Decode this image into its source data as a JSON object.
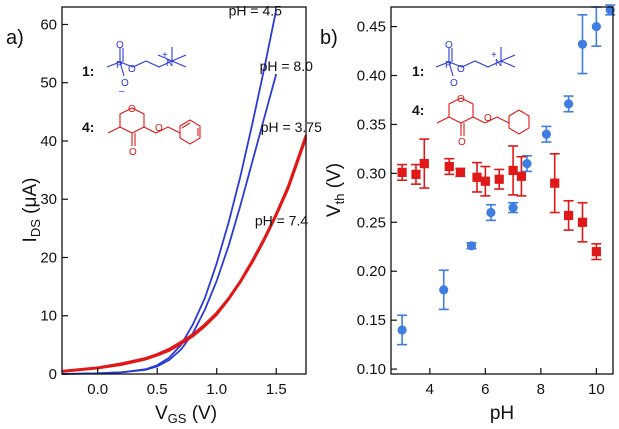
{
  "chart_data": [
    {
      "panel_label": "a)",
      "type": "line",
      "xlabel": "V",
      "xlabel_sub": "GS",
      "xlabel_unit": " (V)",
      "ylabel": "I",
      "ylabel_sub": "DS",
      "ylabel_unit": " (μA)",
      "xlim": [
        -0.3,
        1.75
      ],
      "ylim": [
        0,
        63
      ],
      "xticks": [
        0.0,
        0.5,
        1.0,
        1.5
      ],
      "xtick_labels": [
        "0.0",
        "0.5",
        "1.0",
        "1.5"
      ],
      "yticks": [
        0,
        10,
        20,
        30,
        40,
        50,
        60
      ],
      "ytick_labels": [
        "0",
        "10",
        "20",
        "30",
        "40",
        "50",
        "60"
      ],
      "series": [
        {
          "name": "pH = 4.5",
          "color": "#2a3bd8",
          "x": [
            -0.3,
            0.0,
            0.2,
            0.4,
            0.5,
            0.6,
            0.7,
            0.8,
            0.9,
            1.0,
            1.1,
            1.2,
            1.3,
            1.4,
            1.5
          ],
          "y": [
            0,
            0.1,
            0.3,
            0.8,
            1.5,
            2.8,
            5.0,
            8.5,
            13.0,
            19.0,
            26.0,
            34.0,
            43.0,
            52.5,
            62.5
          ]
        },
        {
          "name": "pH = 8.0",
          "color": "#2a3bd8",
          "x": [
            -0.3,
            0.0,
            0.2,
            0.4,
            0.5,
            0.6,
            0.7,
            0.8,
            0.9,
            1.0,
            1.1,
            1.2,
            1.3,
            1.4,
            1.5
          ],
          "y": [
            0,
            0.1,
            0.3,
            0.7,
            1.3,
            2.4,
            4.2,
            7.0,
            11.0,
            16.0,
            22.0,
            29.0,
            36.5,
            44.0,
            51.5
          ]
        },
        {
          "name": "pH = 3.75",
          "color": "#e01818",
          "x": [
            -0.3,
            0.0,
            0.2,
            0.4,
            0.5,
            0.6,
            0.7,
            0.8,
            0.9,
            1.0,
            1.1,
            1.2,
            1.3,
            1.4,
            1.5,
            1.6,
            1.75
          ],
          "y": [
            0.4,
            1.0,
            1.6,
            2.5,
            3.2,
            4.0,
            5.2,
            6.5,
            8.2,
            10.2,
            12.8,
            15.8,
            19.2,
            23.0,
            27.2,
            31.8,
            40.5
          ]
        },
        {
          "name": "pH = 7.4",
          "color": "#e01818",
          "x": [
            -0.3,
            0.0,
            0.2,
            0.4,
            0.5,
            0.6,
            0.7,
            0.8,
            0.9,
            1.0,
            1.1,
            1.2,
            1.3,
            1.4,
            1.5,
            1.6,
            1.75
          ],
          "y": [
            0.5,
            1.1,
            1.8,
            2.7,
            3.4,
            4.3,
            5.5,
            6.8,
            8.5,
            10.5,
            13.0,
            16.0,
            19.5,
            23.3,
            27.5,
            32.2,
            41.0
          ]
        }
      ],
      "annotations": [
        {
          "text": "pH = 4.5",
          "x": 1.1,
          "y": 61.5
        },
        {
          "text": "pH = 8.0",
          "x": 1.36,
          "y": 52.0
        },
        {
          "text": "pH = 3.75",
          "x": 1.37,
          "y": 41.5
        },
        {
          "text": "pH = 7.4",
          "x": 1.32,
          "y": 25.5
        }
      ],
      "compound_labels": [
        {
          "text": "1:",
          "color": "#2a3bd8"
        },
        {
          "text": "4:",
          "color": "#e01818"
        }
      ]
    },
    {
      "panel_label": "b)",
      "type": "scatter",
      "xlabel": "pH",
      "ylabel": "V",
      "ylabel_sub": "th",
      "ylabel_unit": " (V)",
      "xlim": [
        2.6,
        10.6
      ],
      "ylim": [
        0.095,
        0.47
      ],
      "xticks": [
        4,
        6,
        8,
        10
      ],
      "xtick_labels": [
        "4",
        "6",
        "8",
        "10"
      ],
      "yticks": [
        0.1,
        0.15,
        0.2,
        0.25,
        0.3,
        0.35,
        0.4,
        0.45
      ],
      "ytick_labels": [
        "0.10",
        "0.15",
        "0.20",
        "0.25",
        "0.30",
        "0.35",
        "0.40",
        "0.45"
      ],
      "series": [
        {
          "name": "1",
          "color": "#3f7de0",
          "marker": "circle",
          "x": [
            3.0,
            4.5,
            5.5,
            6.2,
            7.0,
            7.5,
            8.2,
            9.0,
            9.5,
            10.0,
            10.5
          ],
          "y": [
            0.14,
            0.181,
            0.226,
            0.26,
            0.265,
            0.31,
            0.34,
            0.371,
            0.432,
            0.45,
            0.467
          ],
          "err": [
            0.015,
            0.02,
            0.003,
            0.008,
            0.005,
            0.008,
            0.008,
            0.008,
            0.03,
            0.02,
            0.005
          ]
        },
        {
          "name": "4",
          "color": "#e01818",
          "marker": "square",
          "x": [
            3.0,
            3.5,
            3.8,
            4.7,
            5.1,
            5.7,
            6.0,
            6.5,
            7.0,
            7.3,
            8.5,
            9.0,
            9.5,
            10.0
          ],
          "y": [
            0.301,
            0.299,
            0.31,
            0.307,
            0.301,
            0.296,
            0.292,
            0.294,
            0.303,
            0.297,
            0.29,
            0.257,
            0.25,
            0.22
          ],
          "err": [
            0.008,
            0.01,
            0.025,
            0.008,
            0.004,
            0.015,
            0.015,
            0.01,
            0.025,
            0.02,
            0.03,
            0.015,
            0.02,
            0.008
          ]
        }
      ],
      "compound_labels": [
        {
          "text": "1:",
          "color": "#2a3bd8"
        },
        {
          "text": "4:",
          "color": "#e01818"
        }
      ]
    }
  ]
}
